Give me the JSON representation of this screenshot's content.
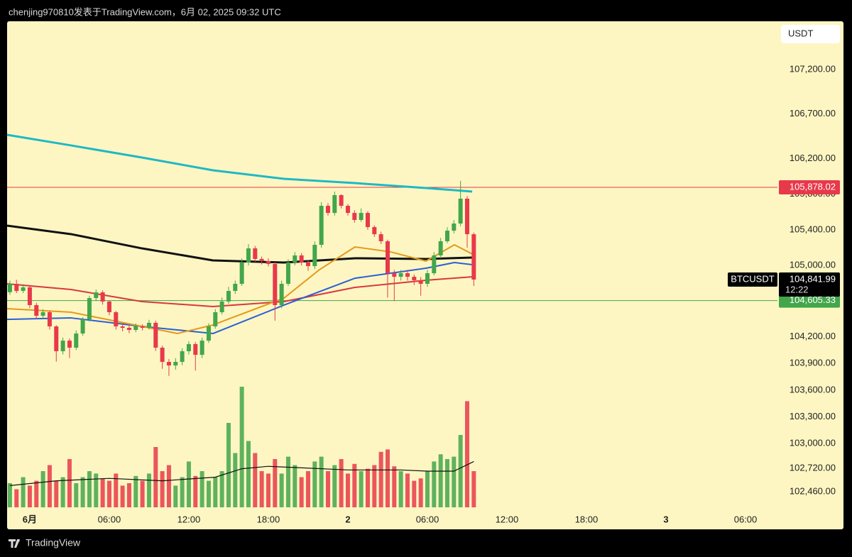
{
  "header": {
    "attribution": "chenjing970810发表于TradingView.com，6月 02, 2025 09:32 UTC"
  },
  "footer": {
    "brand": "TradingView"
  },
  "chart_data": {
    "type": "candlestick",
    "currency": "USDT",
    "symbol": "BTCUSDT",
    "last_price": {
      "value": 104841.99,
      "label": "104,841.99"
    },
    "countdown": "12:22",
    "up_color": "#43a64b",
    "down_color": "#e8394a",
    "background": "#fdf6c3",
    "price_lines": [
      {
        "value": 105878.02,
        "label": "105,878.02",
        "color": "#e8394a"
      },
      {
        "value": 104605.33,
        "label": "104,605.33",
        "color": "#43a64b"
      }
    ],
    "xlim": [
      -1.71,
      56.41
    ],
    "xticks": [
      {
        "value": 0,
        "label": "6月"
      },
      {
        "value": 6,
        "label": "06:00"
      },
      {
        "value": 12,
        "label": "12:00"
      },
      {
        "value": 18,
        "label": "18:00"
      },
      {
        "value": 24,
        "label": "2"
      },
      {
        "value": 30,
        "label": "06:00"
      },
      {
        "value": 36,
        "label": "12:00"
      },
      {
        "value": 42,
        "label": "18:00"
      },
      {
        "value": 48,
        "label": "3"
      },
      {
        "value": 54,
        "label": "06:00"
      }
    ],
    "ylim": [
      102045,
      107742
    ],
    "yticks": [
      {
        "value": 107200,
        "label": "107,200.00"
      },
      {
        "value": 106700,
        "label": "106,700.00"
      },
      {
        "value": 106200,
        "label": "106,200.00"
      },
      {
        "value": 105800,
        "label": "105,800.00"
      },
      {
        "value": 105400,
        "label": "105,400.00"
      },
      {
        "value": 105000,
        "label": "105,000.00"
      },
      {
        "value": 104200,
        "label": "104,200.00"
      },
      {
        "value": 103900,
        "label": "103,900.00"
      },
      {
        "value": 103600,
        "label": "103,600.00"
      },
      {
        "value": 103300,
        "label": "103,300.00"
      },
      {
        "value": 103000,
        "label": "103,000.00"
      },
      {
        "value": 102720,
        "label": "102,720.00"
      },
      {
        "value": 102460,
        "label": "102,460.00"
      }
    ],
    "x": [
      -1.5,
      -1,
      -0.5,
      0,
      0.5,
      1,
      1.5,
      2,
      2.5,
      3,
      3.5,
      4,
      4.5,
      5,
      5.5,
      6,
      6.5,
      7,
      7.5,
      8,
      8.5,
      9,
      9.5,
      10,
      10.5,
      11,
      11.5,
      12,
      12.5,
      13,
      13.5,
      14,
      14.5,
      15,
      15.5,
      16,
      16.5,
      17,
      17.5,
      18,
      18.5,
      19,
      19.5,
      20,
      20.5,
      21,
      21.5,
      22,
      22.5,
      23,
      23.5,
      24,
      24.5,
      25,
      25.5,
      26,
      26.5,
      27,
      27.5,
      28,
      28.5,
      29,
      29.5,
      30,
      30.5,
      31,
      31.5,
      32,
      32.5,
      33,
      33.5
    ],
    "open": [
      104700,
      104794,
      104714,
      104754,
      104555,
      104435,
      104475,
      104316,
      104037,
      104156,
      104077,
      104236,
      104395,
      104634,
      104698,
      104595,
      104475,
      104316,
      104300,
      104276,
      104316,
      104300,
      104356,
      104077,
      103917,
      103877,
      103917,
      104037,
      104117,
      103997,
      104156,
      104316,
      104475,
      104595,
      104714,
      104794,
      105033,
      105192,
      105073,
      105049,
      105017,
      104555,
      104794,
      105033,
      105113,
      105033,
      104993,
      105232,
      105670,
      105590,
      105790,
      105670,
      105590,
      105511,
      105590,
      105431,
      105351,
      105272,
      104913,
      104873,
      104913,
      104873,
      104834,
      104794,
      104913,
      105113,
      105272,
      105391,
      105471,
      105750,
      105351
    ],
    "high": [
      104830,
      104840,
      104790,
      104770,
      104580,
      104510,
      104490,
      104330,
      104190,
      104180,
      104270,
      104420,
      104660,
      104730,
      104720,
      104610,
      104490,
      104350,
      104330,
      104350,
      104340,
      104390,
      104380,
      104100,
      103950,
      103960,
      104070,
      104150,
      104140,
      104190,
      104350,
      104510,
      104640,
      104760,
      104830,
      105080,
      105240,
      105220,
      105100,
      105080,
      105040,
      104830,
      105070,
      105150,
      105140,
      105060,
      105270,
      105710,
      105700,
      105830,
      105800,
      105690,
      105620,
      105640,
      105610,
      105450,
      105380,
      105290,
      104950,
      104950,
      104950,
      104900,
      104870,
      104950,
      105150,
      105310,
      105430,
      105510,
      105950,
      105780,
      105370
    ],
    "low": [
      104670,
      104690,
      104690,
      104520,
      104400,
      104400,
      104280,
      103920,
      104000,
      103960,
      104050,
      104210,
      104370,
      104600,
      104560,
      104440,
      104280,
      104260,
      104240,
      104250,
      104270,
      104280,
      104040,
      103840,
      103760,
      103830,
      103880,
      104000,
      103820,
      103960,
      104130,
      104290,
      104450,
      104570,
      104680,
      104770,
      105000,
      105040,
      105010,
      104990,
      104380,
      104520,
      104770,
      105000,
      105000,
      104940,
      104960,
      105200,
      105560,
      105560,
      105640,
      105560,
      105480,
      105490,
      105400,
      105320,
      105240,
      104640,
      104600,
      104830,
      104830,
      104780,
      104660,
      104760,
      104890,
      105080,
      105250,
      105360,
      105440,
      105200,
      104770
    ],
    "close": [
      104794,
      104714,
      104754,
      104555,
      104435,
      104475,
      104316,
      104037,
      104156,
      104077,
      104236,
      104395,
      104634,
      104698,
      104595,
      104475,
      104316,
      104300,
      104276,
      104316,
      104300,
      104356,
      104077,
      103917,
      103877,
      103917,
      104037,
      104117,
      103997,
      104156,
      104316,
      104475,
      104595,
      104714,
      104794,
      105033,
      105192,
      105073,
      105049,
      105017,
      104555,
      104794,
      105033,
      105113,
      105033,
      104993,
      105232,
      105670,
      105590,
      105790,
      105670,
      105590,
      105511,
      105590,
      105431,
      105351,
      105272,
      104913,
      104873,
      104913,
      104873,
      104834,
      104794,
      104913,
      105113,
      105272,
      105391,
      105471,
      105750,
      105351,
      104842
    ],
    "volume": [
      20,
      15,
      25,
      18,
      22,
      30,
      35,
      22,
      25,
      40,
      20,
      25,
      30,
      28,
      24,
      22,
      28,
      18,
      20,
      26,
      22,
      28,
      50,
      30,
      35,
      18,
      25,
      38,
      26,
      30,
      22,
      25,
      30,
      70,
      45,
      100,
      55,
      45,
      30,
      28,
      40,
      28,
      42,
      35,
      25,
      30,
      38,
      42,
      30,
      35,
      40,
      28,
      36,
      30,
      32,
      35,
      46,
      48,
      34,
      30,
      28,
      22,
      24,
      30,
      38,
      44,
      40,
      42,
      60,
      88,
      30
    ],
    "volume_ma": {
      "color": "#111111",
      "x": [
        -1.5,
        2,
        6,
        10,
        14,
        16,
        18,
        20,
        24,
        28,
        30,
        32,
        33.5
      ],
      "values": [
        18,
        22,
        24,
        22,
        25,
        32,
        34,
        33,
        31,
        31,
        30,
        30,
        38
      ]
    },
    "moving_averages": [
      {
        "color": "#1fb8c4",
        "x": [
          -1.71,
          3.11,
          8.46,
          13.82,
          19.18,
          24.54,
          29.89,
          33.38
        ],
        "values": [
          106467,
          106348,
          106212,
          106069,
          105973,
          105925,
          105870,
          105830
        ]
      },
      {
        "color": "#111111",
        "x": [
          -1.71,
          3.11,
          8.46,
          13.82,
          19.18,
          24.54,
          29.89,
          33.38
        ],
        "values": [
          105447,
          105352,
          105192,
          105057,
          105033,
          105081,
          105073,
          105089
        ]
      },
      {
        "color": "#d8383f",
        "x": [
          -1.71,
          3.11,
          8.46,
          13.82,
          19.18,
          24.54,
          29.89,
          33.38
        ],
        "values": [
          104794,
          104730,
          104595,
          104539,
          104595,
          104754,
          104834,
          104873
        ]
      },
      {
        "color": "#2a5fd6",
        "x": [
          -1.71,
          3.11,
          8.46,
          13.82,
          19.18,
          24.54,
          29.89,
          32.04,
          33.38
        ],
        "values": [
          104395,
          104411,
          104316,
          104236,
          104555,
          104857,
          104969,
          105033,
          105009
        ]
      },
      {
        "color": "#e59a1a",
        "x": [
          -1.71,
          3.11,
          8.46,
          11.14,
          13.82,
          19.18,
          21.86,
          24.54,
          27.21,
          29.89,
          32.04,
          33.38
        ],
        "values": [
          104515,
          104475,
          104316,
          104236,
          104332,
          104634,
          104953,
          105208,
          105153,
          105049,
          105232,
          105129
        ]
      }
    ]
  }
}
